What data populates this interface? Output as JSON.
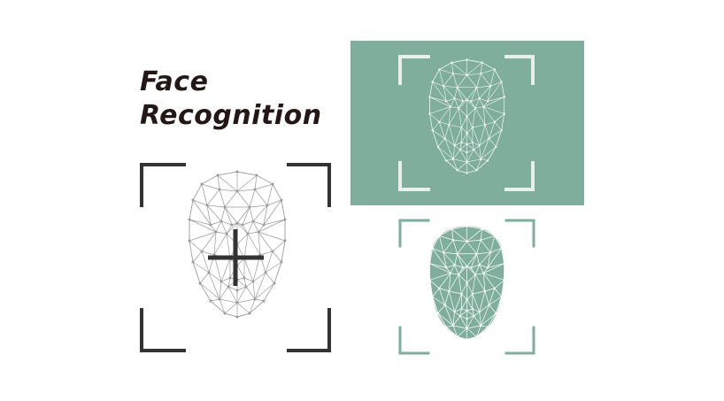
{
  "title": {
    "line1": "Face",
    "line2": "Recognition"
  },
  "colors": {
    "title_text": "#231815",
    "accent_green": "#7fae9d",
    "frame_dark": "#333333",
    "mesh_gray": "#9a9a9a",
    "mesh_light": "#ffffff"
  },
  "icons": {
    "crosshair": "plus-crosshair-icon",
    "face_mesh": "face-mesh-icon",
    "corner_brackets": "scan-frame-brackets"
  }
}
